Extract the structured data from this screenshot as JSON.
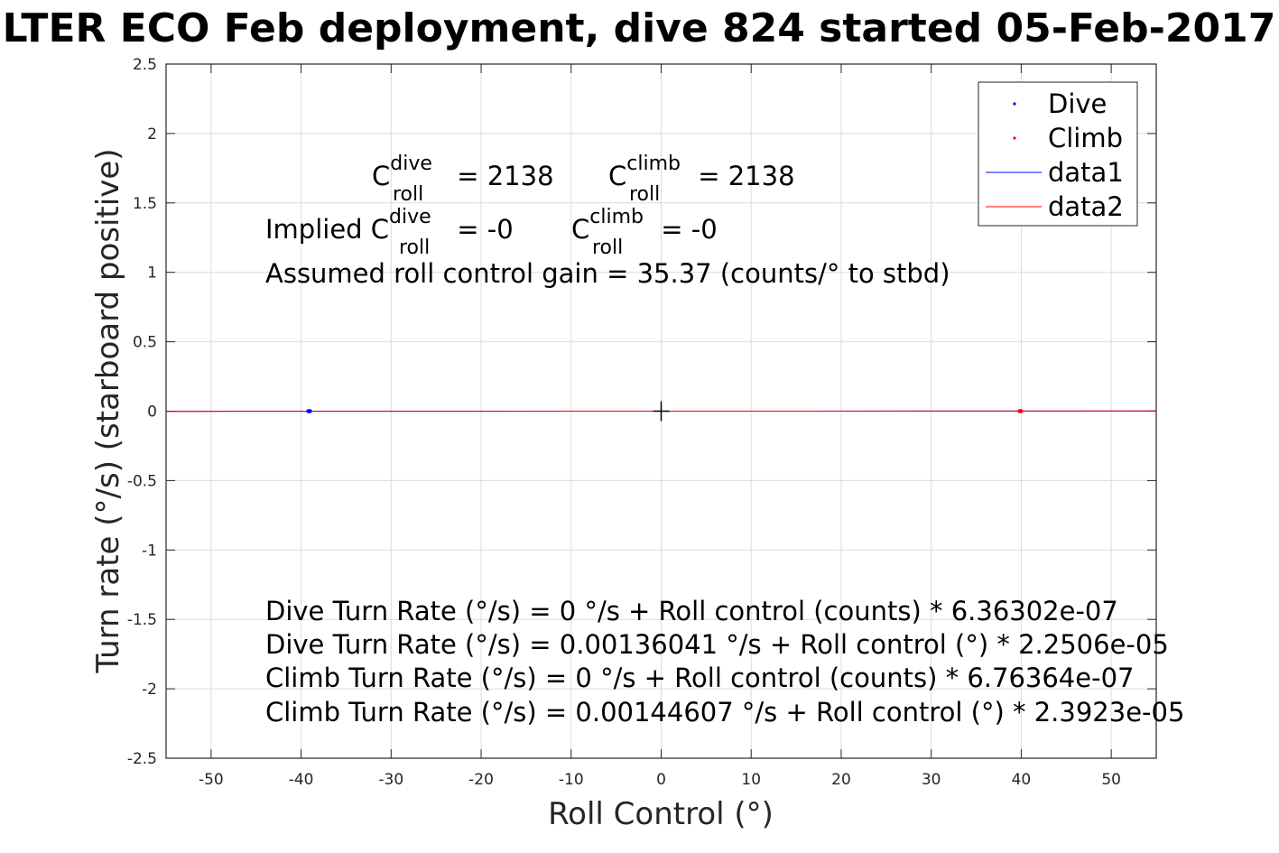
{
  "chart_data": {
    "type": "scatter",
    "title": "LTER ECO Feb deployment, dive 824 started 05-Feb-2017",
    "xlabel": "Roll Control (°)",
    "ylabel": "Turn rate (°/s) (starboard positive)",
    "xlim": [
      -55,
      55
    ],
    "ylim": [
      -2.5,
      2.5
    ],
    "xticks": [
      -50,
      -40,
      -30,
      -20,
      -10,
      0,
      10,
      20,
      30,
      40,
      50
    ],
    "yticks": [
      2.5,
      2,
      1.5,
      1,
      0.5,
      0,
      -0.5,
      -1,
      -1.5,
      -2,
      -2.5
    ],
    "xtick_labels": [
      "-50",
      "-40",
      "-30",
      "-20",
      "-10",
      "0",
      "10",
      "20",
      "30",
      "40",
      "50"
    ],
    "ytick_labels": [
      "2.5",
      "2",
      "1.5",
      "1",
      "0.5",
      "0",
      "-0.5",
      "-1",
      "-1.5",
      "-2",
      "-2.5"
    ],
    "grid": true,
    "legend_position": "top-right",
    "series": [
      {
        "name": "Dive",
        "kind": "points",
        "color": "#0000ff",
        "x": [
          -39.2,
          -39.1,
          -39.0
        ],
        "y": [
          0,
          0,
          0
        ]
      },
      {
        "name": "Climb",
        "kind": "points",
        "color": "#ff0000",
        "x": [
          39.8,
          39.9,
          40.0
        ],
        "y": [
          0,
          0,
          0
        ]
      },
      {
        "name": "data1",
        "kind": "line",
        "color": "#0000ff",
        "x": [
          -55,
          55
        ],
        "y": [
          -0.00124,
          0.00124
        ]
      },
      {
        "name": "data2",
        "kind": "line",
        "color": "#ff0000",
        "x": [
          -55,
          55
        ],
        "y": [
          -0.00132,
          0.00132
        ]
      }
    ],
    "origin_marker": {
      "x": 0,
      "y": 0,
      "color": "#000000"
    },
    "annotations": {
      "c_roll_dive_label": "C",
      "c_roll_dive_sup": "dive",
      "c_roll_dive_sub": "roll",
      "c_roll_dive_value": " = 2138",
      "c_roll_climb_label": "C",
      "c_roll_climb_sup": "climb",
      "c_roll_climb_sub": "roll",
      "c_roll_climb_value": " = 2138",
      "implied_prefix": "Implied C",
      "implied_dive_sup": "dive",
      "implied_dive_sub": "roll",
      "implied_dive_value": " = -0",
      "implied_climb_label": "C",
      "implied_climb_sup": "climb",
      "implied_climb_sub": "roll",
      "implied_climb_value": " = -0",
      "gain": "Assumed roll control gain = 35.37 (counts/° to stbd)",
      "fit_lines": [
        "Dive Turn Rate (°/s) = 0 °/s + Roll control (counts) * 6.36302e-07",
        "Dive Turn Rate (°/s) = 0.00136041 °/s + Roll control (°) * 2.2506e-05",
        "Climb Turn Rate (°/s) = 0 °/s + Roll control (counts) * 6.76364e-07",
        "Climb Turn Rate (°/s) = 0.00144607 °/s + Roll control (°) * 2.3923e-05"
      ]
    }
  }
}
